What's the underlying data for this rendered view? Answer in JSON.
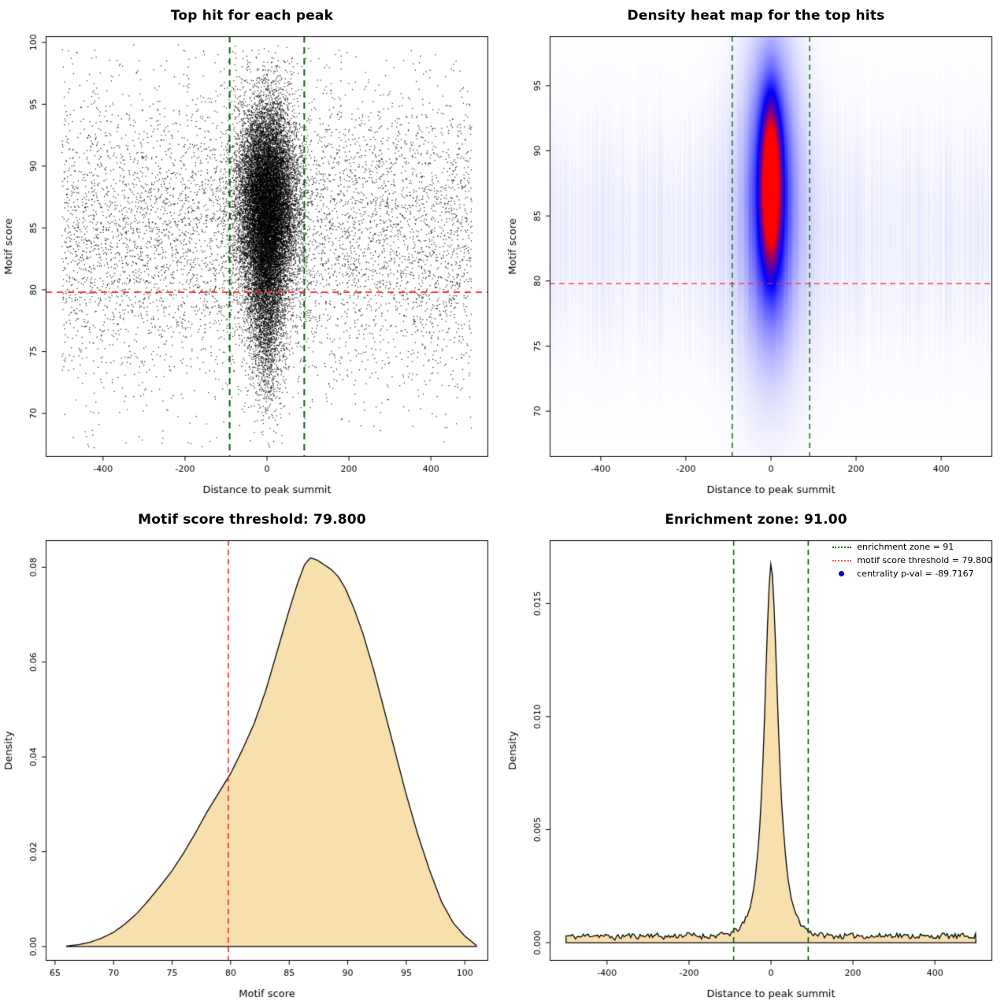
{
  "figure": {
    "background": "#FFFFFF"
  },
  "chart_data": [
    {
      "type": "scatter",
      "title": "Top hit for each peak",
      "xlabel": "Distance to peak summit",
      "ylabel": "Motif score",
      "xlim": [
        -540,
        540
      ],
      "ylim": [
        66.5,
        100.5
      ],
      "xticks": [
        -400,
        -200,
        0,
        200,
        400
      ],
      "yticks": [
        70,
        75,
        80,
        85,
        90,
        95,
        100
      ],
      "xtick_decimals": 0,
      "ytick_decimals": 0,
      "point_color": "#000000",
      "points": {
        "seed": 42,
        "clusters": [
          {
            "n": 16000,
            "x": {
              "dist": "normal",
              "mean": 0,
              "sd": 36
            },
            "y": {
              "dist": "normal",
              "mean": 87,
              "sd": 4.0
            }
          },
          {
            "n": 4000,
            "x": {
              "dist": "normal",
              "mean": 0,
              "sd": 22
            },
            "y": {
              "dist": "normal",
              "mean": 80.5,
              "sd": 4.5
            }
          },
          {
            "n": 6500,
            "x": {
              "dist": "uniform",
              "min": -500,
              "max": 500
            },
            "y": {
              "dist": "normal",
              "mean": 84.5,
              "sd": 6.2
            }
          }
        ],
        "clip_x": [
          -500,
          500
        ],
        "clip_y": [
          67,
          99.8
        ]
      },
      "vlines": [
        {
          "x": -91,
          "color": "#006400",
          "width": 2,
          "dash": [
            8,
            6
          ]
        },
        {
          "x": 91,
          "color": "#006400",
          "width": 2,
          "dash": [
            8,
            6
          ]
        }
      ],
      "hlines": [
        {
          "y": 79.8,
          "color": "#FF2222",
          "width": 1.6,
          "dash": [
            8,
            6
          ]
        }
      ]
    },
    {
      "type": "heatmap",
      "title": "Density heat map for the top hits",
      "xlabel": "Distance to peak summit",
      "ylabel": "Motif score",
      "xlim": [
        -520,
        520
      ],
      "ylim": [
        66.5,
        98.8
      ],
      "xticks": [
        -400,
        -200,
        0,
        200,
        400
      ],
      "yticks": [
        70,
        75,
        80,
        85,
        90,
        95
      ],
      "xtick_decimals": 0,
      "ytick_decimals": 0,
      "density_field": {
        "components": [
          {
            "cx": 0,
            "cy": 87.5,
            "sx": 14,
            "sy": 3.8,
            "amp": 1.0
          },
          {
            "cx": 0,
            "cy": 86.8,
            "sx": 32,
            "sy": 6.5,
            "amp": 0.45
          },
          {
            "cx": 0,
            "cy": 85.5,
            "sx": 60,
            "sy": 9.0,
            "amp": 0.15
          }
        ],
        "background": {
          "cy": 83.5,
          "sy": 6.5,
          "amp": 0.055,
          "seed": 9
        }
      },
      "colormap": [
        "#FFFFFF",
        "#0000FF",
        "#FF0000"
      ],
      "vlines": [
        {
          "x": -91,
          "color": "#006400",
          "width": 1.4,
          "dash": [
            7,
            5
          ]
        },
        {
          "x": 91,
          "color": "#006400",
          "width": 1.4,
          "dash": [
            7,
            5
          ]
        }
      ],
      "hlines": [
        {
          "y": 79.8,
          "color": "#FF2222",
          "width": 1.4,
          "dash": [
            7,
            5
          ]
        }
      ]
    },
    {
      "type": "density",
      "title": "Motif score threshold: 79.800",
      "xlabel": "Motif score",
      "ylabel": "Density",
      "xlim": [
        64.2,
        102
      ],
      "ylim": [
        -0.003,
        0.0857
      ],
      "xticks": [
        65,
        70,
        75,
        80,
        85,
        90,
        95,
        100
      ],
      "yticks": [
        0.0,
        0.02,
        0.04,
        0.06,
        0.08
      ],
      "xtick_decimals": 0,
      "ytick_decimals": 2,
      "fill": "#F7DFAE",
      "line_color": "#000000",
      "curve": [
        [
          66,
          0.0001
        ],
        [
          67,
          0.0004
        ],
        [
          68,
          0.0009
        ],
        [
          69,
          0.0018
        ],
        [
          70,
          0.003
        ],
        [
          71,
          0.0048
        ],
        [
          72,
          0.007
        ],
        [
          73,
          0.0098
        ],
        [
          74,
          0.0128
        ],
        [
          75,
          0.016
        ],
        [
          76,
          0.0198
        ],
        [
          77,
          0.024
        ],
        [
          78,
          0.0285
        ],
        [
          79,
          0.0325
        ],
        [
          79.8,
          0.0357
        ],
        [
          80,
          0.0365
        ],
        [
          81,
          0.0415
        ],
        [
          82,
          0.047
        ],
        [
          83,
          0.054
        ],
        [
          84,
          0.0625
        ],
        [
          85,
          0.071
        ],
        [
          85.7,
          0.0765
        ],
        [
          86.3,
          0.0805
        ],
        [
          86.8,
          0.082
        ],
        [
          87.4,
          0.0815
        ],
        [
          88,
          0.0805
        ],
        [
          88.6,
          0.0795
        ],
        [
          89.2,
          0.078
        ],
        [
          89.8,
          0.0755
        ],
        [
          90.5,
          0.0715
        ],
        [
          91.3,
          0.066
        ],
        [
          92.2,
          0.0585
        ],
        [
          93,
          0.051
        ],
        [
          94,
          0.0415
        ],
        [
          95,
          0.032
        ],
        [
          96,
          0.0235
        ],
        [
          97,
          0.016
        ],
        [
          98,
          0.0095
        ],
        [
          99,
          0.005
        ],
        [
          100,
          0.0022
        ],
        [
          100.7,
          0.0008
        ],
        [
          101,
          0.0002
        ]
      ],
      "vlines": [
        {
          "x": 79.8,
          "color": "#FF2222",
          "width": 1.6,
          "dash": [
            7,
            5
          ]
        }
      ],
      "hlines": []
    },
    {
      "type": "density",
      "title": "Enrichment zone: 91.00",
      "xlabel": "Distance to peak summit",
      "ylabel": "Density",
      "xlim": [
        -540,
        540
      ],
      "ylim": [
        -0.0008,
        0.0178
      ],
      "xticks": [
        -400,
        -200,
        0,
        200,
        400
      ],
      "yticks": [
        0.0,
        0.005,
        0.01,
        0.015
      ],
      "xtick_decimals": 0,
      "ytick_decimals": 3,
      "fill": "#F7DFAE",
      "line_color": "#000000",
      "enrichment_zone": 91,
      "motif_score_threshold": 79.8,
      "centrality_p_val": "-89.7167",
      "curve": [
        [
          -500,
          0.0003
        ],
        [
          -470,
          0.00025
        ],
        [
          -440,
          0.00035
        ],
        [
          -410,
          0.0003
        ],
        [
          -380,
          0.00022
        ],
        [
          -350,
          0.00032
        ],
        [
          -320,
          0.00028
        ],
        [
          -290,
          0.00035
        ],
        [
          -260,
          0.00025
        ],
        [
          -230,
          0.0003
        ],
        [
          -200,
          0.00035
        ],
        [
          -170,
          0.00028
        ],
        [
          -140,
          0.0003
        ],
        [
          -120,
          0.00035
        ],
        [
          -100,
          0.0004
        ],
        [
          -91,
          0.00048
        ],
        [
          -80,
          0.0006
        ],
        [
          -70,
          0.00078
        ],
        [
          -60,
          0.0011
        ],
        [
          -50,
          0.0016
        ],
        [
          -40,
          0.0026
        ],
        [
          -32,
          0.004
        ],
        [
          -26,
          0.0055
        ],
        [
          -20,
          0.0078
        ],
        [
          -15,
          0.0103
        ],
        [
          -10,
          0.0133
        ],
        [
          -6,
          0.0152
        ],
        [
          -3,
          0.0163
        ],
        [
          0,
          0.0168
        ],
        [
          3,
          0.0164
        ],
        [
          6,
          0.0155
        ],
        [
          10,
          0.0138
        ],
        [
          15,
          0.0112
        ],
        [
          20,
          0.0086
        ],
        [
          26,
          0.0062
        ],
        [
          32,
          0.0046
        ],
        [
          40,
          0.003
        ],
        [
          50,
          0.0019
        ],
        [
          60,
          0.0013
        ],
        [
          70,
          0.0009
        ],
        [
          80,
          0.0007
        ],
        [
          91,
          0.00052
        ],
        [
          100,
          0.00042
        ],
        [
          120,
          0.00035
        ],
        [
          150,
          0.0003
        ],
        [
          180,
          0.00028
        ],
        [
          210,
          0.00033
        ],
        [
          240,
          0.00026
        ],
        [
          270,
          0.0003
        ],
        [
          300,
          0.00035
        ],
        [
          330,
          0.00028
        ],
        [
          360,
          0.0003
        ],
        [
          390,
          0.00025
        ],
        [
          420,
          0.00032
        ],
        [
          450,
          0.00028
        ],
        [
          480,
          0.0003
        ],
        [
          500,
          0.0003
        ]
      ],
      "noise": {
        "seed": 11,
        "amp": 0.00012,
        "below": 0.0012
      },
      "vlines": [
        {
          "x": -91,
          "color": "#006400",
          "width": 1.6,
          "dash": [
            7,
            5
          ]
        },
        {
          "x": 91,
          "color": "#006400",
          "width": 1.6,
          "dash": [
            7,
            5
          ]
        }
      ],
      "hlines": [],
      "legend": {
        "entries": [
          {
            "label": "enrichment zone = 91",
            "swatch": "dotted-line",
            "color": "#006400"
          },
          {
            "label": "motif score threshold = 79.800",
            "swatch": "dotted-line",
            "color": "#FF5555"
          },
          {
            "label": "centrality p-val = -89.7167",
            "swatch": "point",
            "color": "#0000CD"
          }
        ]
      }
    }
  ]
}
